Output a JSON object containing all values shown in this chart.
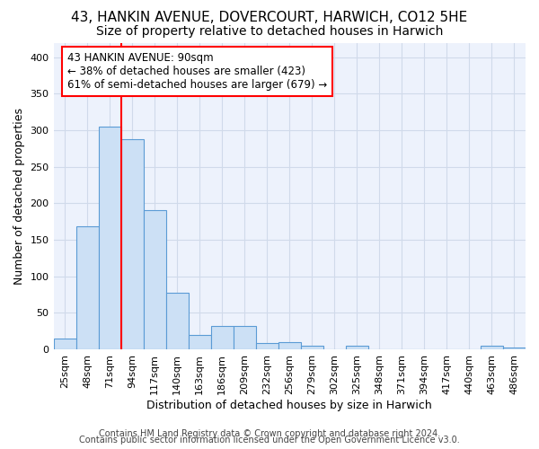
{
  "title_line1": "43, HANKIN AVENUE, DOVERCOURT, HARWICH, CO12 5HE",
  "title_line2": "Size of property relative to detached houses in Harwich",
  "xlabel": "Distribution of detached houses by size in Harwich",
  "ylabel": "Number of detached properties",
  "footer1": "Contains HM Land Registry data © Crown copyright and database right 2024.",
  "footer2": "Contains public sector information licensed under the Open Government Licence v3.0.",
  "categories": [
    "25sqm",
    "48sqm",
    "71sqm",
    "94sqm",
    "117sqm",
    "140sqm",
    "163sqm",
    "186sqm",
    "209sqm",
    "232sqm",
    "256sqm",
    "279sqm",
    "302sqm",
    "325sqm",
    "348sqm",
    "371sqm",
    "394sqm",
    "417sqm",
    "440sqm",
    "463sqm",
    "486sqm"
  ],
  "values": [
    15,
    168,
    305,
    288,
    190,
    78,
    20,
    32,
    32,
    8,
    10,
    5,
    0,
    5,
    0,
    0,
    0,
    0,
    0,
    5,
    2
  ],
  "bar_color": "#cce0f5",
  "bar_edge_color": "#5b9bd5",
  "grid_color": "#d0daea",
  "background_color": "#edf2fc",
  "annotation_box_text": "43 HANKIN AVENUE: 90sqm\n← 38% of detached houses are smaller (423)\n61% of semi-detached houses are larger (679) →",
  "property_line_x": 3.0,
  "ylim": [
    0,
    420
  ],
  "yticks": [
    0,
    50,
    100,
    150,
    200,
    250,
    300,
    350,
    400
  ],
  "title_fontsize": 11,
  "subtitle_fontsize": 10,
  "axis_label_fontsize": 9,
  "tick_fontsize": 8,
  "annotation_fontsize": 8.5,
  "footer_fontsize": 7
}
